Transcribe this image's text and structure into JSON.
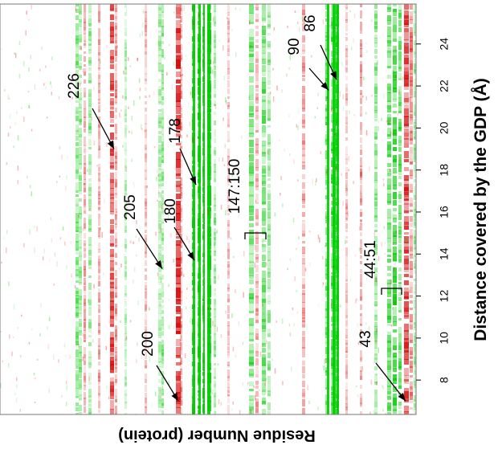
{
  "chart_data": {
    "type": "heatmap",
    "orientation": "rotated 90 degrees clockwise",
    "xlabel": "Residue Number (protein)",
    "ylabel": "Distance covered by the GDP (Å)",
    "distance_ticks": [
      8,
      10,
      12,
      14,
      16,
      18,
      20,
      22,
      24
    ],
    "distance_range": [
      6.4,
      26.0
    ],
    "colors": {
      "positive": "#00cc00",
      "negative": "#dd0000",
      "background": "#ffffff"
    },
    "highlighted_residues": [
      {
        "label": "226",
        "color": "red",
        "distance": 19.0
      },
      {
        "label": "178",
        "color": "green",
        "distance": 17.3
      },
      {
        "label": "205",
        "color": "green",
        "distance": 13.3
      },
      {
        "label": "180",
        "color": "green",
        "distance": 13.7
      },
      {
        "label": "200",
        "color": "red",
        "distance": 7.0
      },
      {
        "label": "147:150",
        "color": "green",
        "distance": 14.3
      },
      {
        "label": "90",
        "color": "green",
        "distance": 21.8
      },
      {
        "label": "86",
        "color": "green",
        "distance": 22.3
      },
      {
        "label": "44:51",
        "color": "green",
        "distance": 11.2
      },
      {
        "label": "43",
        "color": "red",
        "distance": 7.0
      }
    ]
  }
}
